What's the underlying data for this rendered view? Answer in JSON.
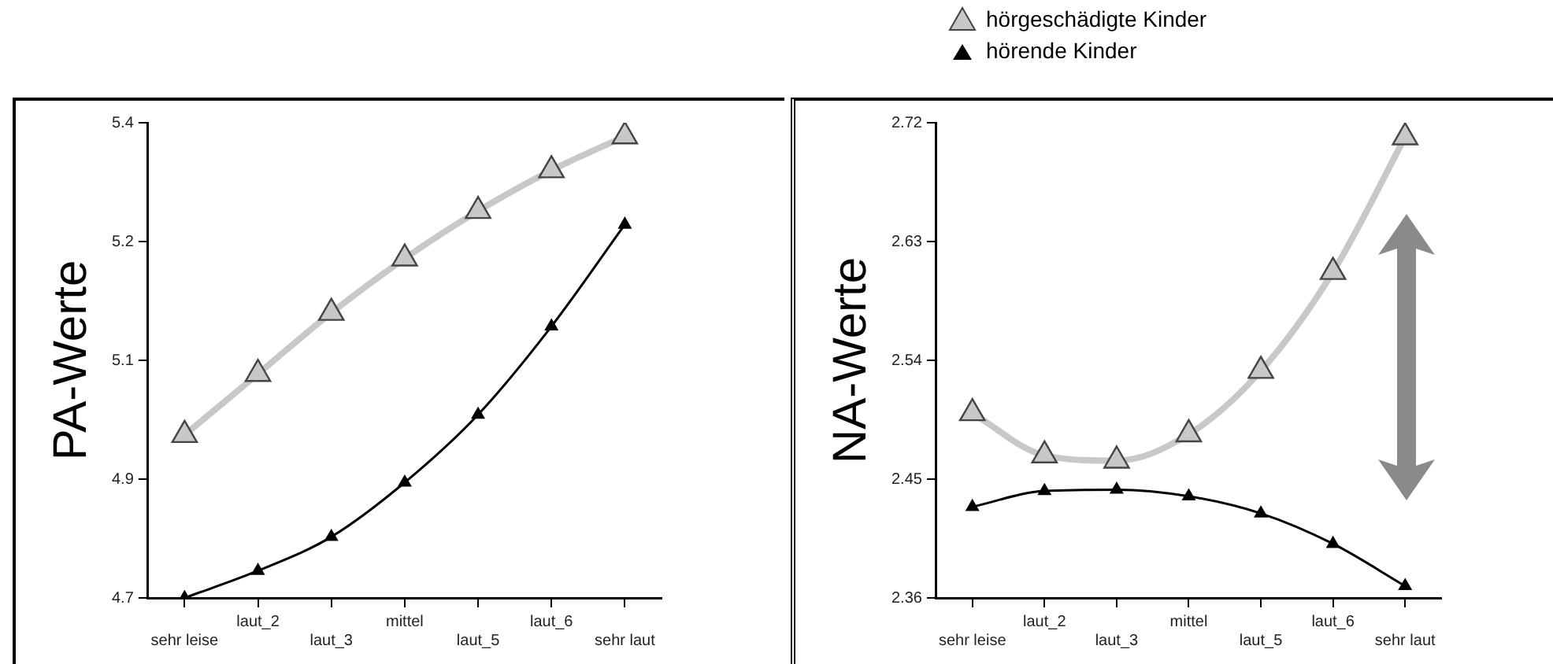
{
  "chart_data": [
    {
      "type": "line",
      "ylabel": "PA-Werte",
      "categories": [
        "sehr leise",
        "laut_2",
        "laut_3",
        "mittel",
        "laut_5",
        "laut_6",
        "sehr laut"
      ],
      "marker": "triangle",
      "line_style": "solid",
      "grid": false,
      "legend": false,
      "ylim": [
        4.7,
        5.4
      ],
      "yticks": [
        4.7,
        {
          "value": 4.875,
          "label": "4.9"
        },
        {
          "value": 5.05,
          "label": "5.1"
        },
        {
          "value": 5.225,
          "label": "5.2"
        },
        5.4
      ],
      "series": [
        {
          "color": "#c8c8c8",
          "values": [
            4.94,
            5.03,
            5.12,
            5.2,
            5.27,
            5.33,
            5.38
          ]
        },
        {
          "color": "#000000",
          "values": [
            4.7,
            4.74,
            4.79,
            4.87,
            4.97,
            5.1,
            5.25
          ]
        }
      ]
    },
    {
      "type": "line",
      "ylabel": "NA-Werte",
      "categories": [
        "sehr leise",
        "laut_2",
        "laut_3",
        "mittel",
        "laut_5",
        "laut_6",
        "sehr laut"
      ],
      "marker": "triangle",
      "line_style": "solid",
      "grid": false,
      "legend": "top",
      "ylim": [
        2.36,
        2.72
      ],
      "yticks": [
        2.36,
        2.45,
        2.54,
        2.63,
        2.72
      ],
      "series": [
        {
          "name": "hörgeschädigte Kinder",
          "color": "#c8c8c8",
          "values": [
            2.5,
            2.468,
            2.464,
            2.484,
            2.532,
            2.607,
            2.709
          ]
        },
        {
          "name": "hörende Kinder",
          "color": "#000000",
          "values": [
            2.429,
            2.441,
            2.442,
            2.437,
            2.424,
            2.401,
            2.369
          ]
        }
      ]
    }
  ]
}
